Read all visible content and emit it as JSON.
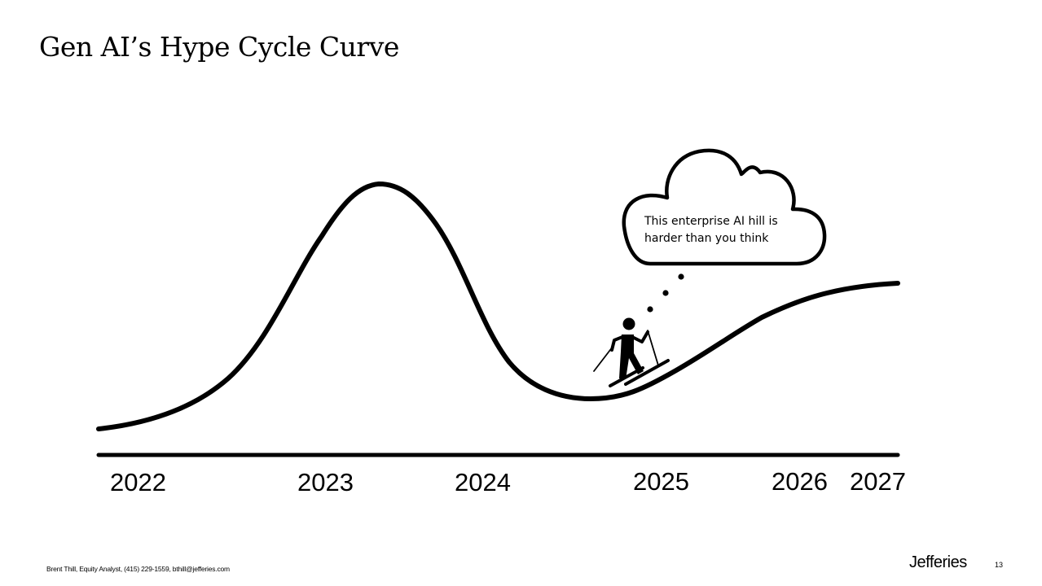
{
  "slide": {
    "title": "Gen AI’s Hype Cycle Curve",
    "page_number": "13"
  },
  "timeline": {
    "years": [
      "2022",
      "2023",
      "2024",
      "2025",
      "2026",
      "2027"
    ]
  },
  "callout": {
    "line1": "This enterprise AI hill is",
    "line2": "harder than you think"
  },
  "footer": {
    "credit": "Brent Thill, Equity Analyst, (415) 229-1559, bthill@jefferies.com",
    "brand": "Jefferies"
  },
  "colors": {
    "ink": "#000000",
    "background": "#ffffff"
  },
  "icons": {
    "figure": "skier-icon"
  }
}
